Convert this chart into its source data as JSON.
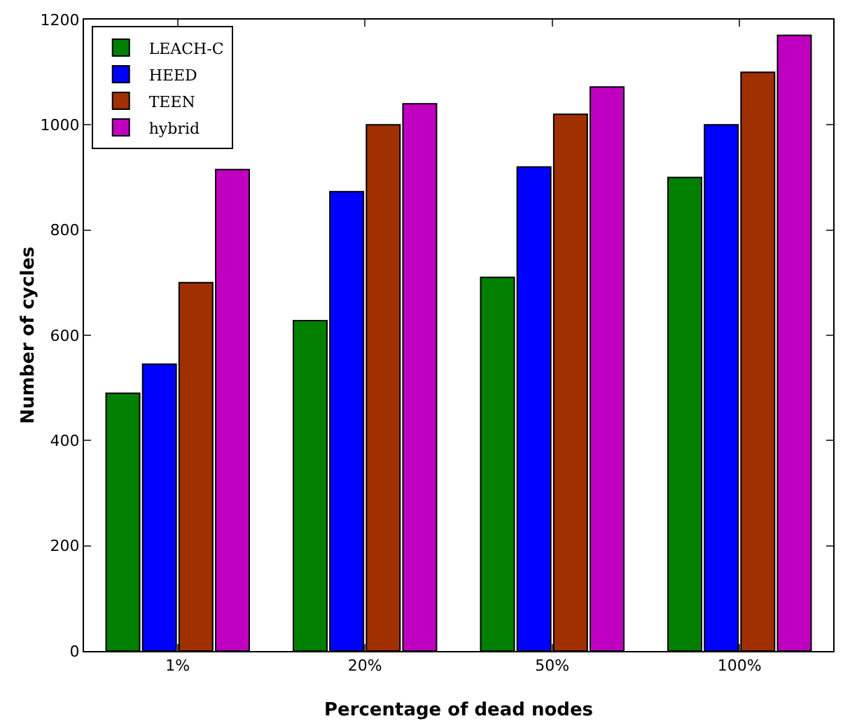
{
  "chart_data": {
    "type": "bar",
    "xlabel": "Percentage of dead nodes",
    "ylabel": "Number of cycles",
    "categories": [
      "1%",
      "20%",
      "50%",
      "100%"
    ],
    "series": [
      {
        "name": "LEACH-C",
        "color": "#007f00",
        "values": [
          490,
          628,
          710,
          900
        ]
      },
      {
        "name": "HEED",
        "color": "#0000ff",
        "values": [
          545,
          873,
          920,
          1000
        ]
      },
      {
        "name": "TEEN",
        "color": "#a03000",
        "values": [
          700,
          1000,
          1020,
          1100
        ]
      },
      {
        "name": "hybrid",
        "color": "#c000c0",
        "values": [
          915,
          1040,
          1072,
          1170
        ]
      }
    ],
    "ylim": [
      0,
      1200
    ],
    "yticks": [
      0,
      200,
      400,
      600,
      800,
      1000,
      1200
    ],
    "grid": false,
    "legend": "top left"
  }
}
